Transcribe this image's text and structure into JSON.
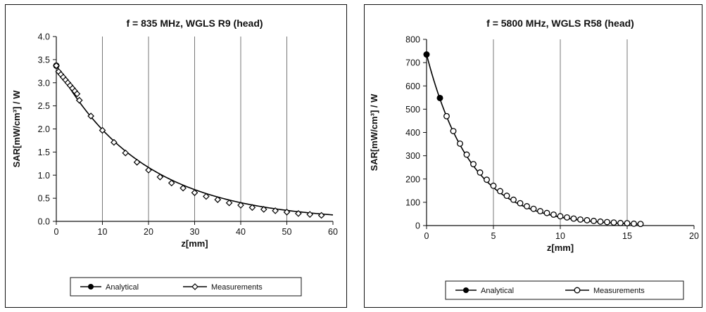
{
  "chart_data": [
    {
      "type": "line",
      "title": "f = 835 MHz, WGLS R9 (head)",
      "xlabel": "z[mm]",
      "ylabel": "SAR[mW/cm³] / W",
      "xlim": [
        0,
        60
      ],
      "ylim": [
        0,
        4.0
      ],
      "xticks": [
        "0",
        "10",
        "20",
        "30",
        "40",
        "50",
        "60"
      ],
      "yticks": [
        "0.0",
        "0.5",
        "1.0",
        "1.5",
        "2.0",
        "2.5",
        "3.0",
        "3.5",
        "4.0"
      ],
      "grid": "vertical",
      "legend_position": "bottom",
      "series": [
        {
          "name": "Analytical",
          "marker": "filled-circle",
          "x": [
            0,
            60
          ],
          "y": [
            3.37,
            0.14
          ],
          "curve": "exponential"
        },
        {
          "name": "Measurements",
          "marker": "open-diamond",
          "x": [
            0,
            0.5,
            1,
            1.5,
            2,
            2.5,
            3,
            3.5,
            4,
            4.5,
            5,
            7.5,
            10,
            12.5,
            15,
            17.5,
            20,
            22.5,
            25,
            27.5,
            30,
            32.5,
            35,
            37.5,
            40,
            42.5,
            45,
            47.5,
            50,
            52.5,
            55,
            57.5
          ],
          "y": [
            3.37,
            3.24,
            3.18,
            3.12,
            3.06,
            3.0,
            2.94,
            2.88,
            2.82,
            2.76,
            2.62,
            2.28,
            1.97,
            1.71,
            1.48,
            1.28,
            1.11,
            0.96,
            0.83,
            0.72,
            0.62,
            0.54,
            0.47,
            0.4,
            0.35,
            0.3,
            0.26,
            0.23,
            0.2,
            0.17,
            0.15,
            0.13
          ]
        }
      ]
    },
    {
      "type": "line",
      "title": "f = 5800 MHz, WGLS R58 (head)",
      "xlabel": "z[mm]",
      "ylabel": "SAR[mW/cm³] / W",
      "xlim": [
        0,
        20
      ],
      "ylim": [
        0,
        800
      ],
      "xticks": [
        "0",
        "5",
        "10",
        "15",
        "20"
      ],
      "yticks": [
        "0",
        "100",
        "200",
        "300",
        "400",
        "500",
        "600",
        "700",
        "800"
      ],
      "grid": "vertical",
      "legend_position": "bottom",
      "series": [
        {
          "name": "Analytical",
          "marker": "filled-circle",
          "x": [
            0,
            1,
            16
          ],
          "y": [
            735,
            548,
            6
          ],
          "curve": "exponential"
        },
        {
          "name": "Measurements",
          "marker": "open-circle",
          "x": [
            1.5,
            2,
            2.5,
            3,
            3.5,
            4,
            4.5,
            5,
            5.5,
            6,
            6.5,
            7,
            7.5,
            8,
            8.5,
            9,
            9.5,
            10,
            10.5,
            11,
            11.5,
            12,
            12.5,
            13,
            13.5,
            14,
            14.5,
            15,
            15.5,
            16
          ],
          "y": [
            470,
            406,
            352,
            305,
            264,
            228,
            197,
            171,
            148,
            128,
            111,
            96,
            83,
            72,
            62,
            54,
            47,
            40,
            35,
            30,
            26,
            23,
            20,
            17,
            15,
            13,
            11,
            10,
            8,
            7
          ]
        }
      ]
    }
  ]
}
